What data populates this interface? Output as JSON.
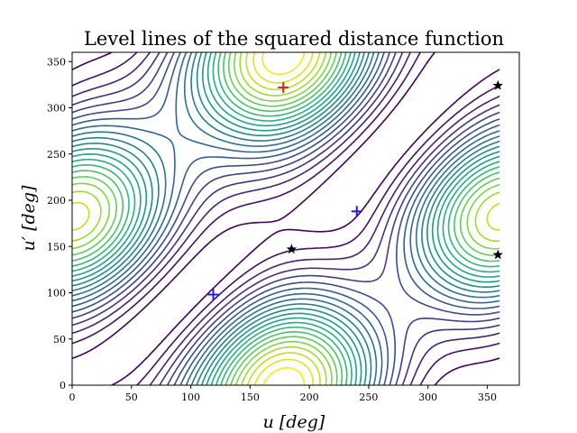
{
  "chart_data": {
    "type": "contour",
    "title": "Level lines of the squared distance function",
    "xlabel": "u [deg]",
    "ylabel": "u′ [deg]",
    "xlim": [
      0,
      377
    ],
    "ylim": [
      0,
      360
    ],
    "xticks": [
      0,
      50,
      100,
      150,
      200,
      250,
      300,
      350
    ],
    "yticks": [
      0,
      50,
      100,
      150,
      200,
      250,
      300,
      350
    ],
    "colormap": "viridis",
    "markers": [
      {
        "symbol": "plus",
        "color": "#d62728",
        "x": 178,
        "y": 322
      },
      {
        "symbol": "plus",
        "color": "#1f1fd8",
        "x": 119,
        "y": 98
      },
      {
        "symbol": "plus",
        "color": "#1f1fd8",
        "x": 240,
        "y": 188
      },
      {
        "symbol": "star",
        "color": "#000000",
        "x": 185,
        "y": 147
      },
      {
        "symbol": "star",
        "color": "#000000",
        "x": 359,
        "y": 324
      },
      {
        "symbol": "star",
        "color": "#000000",
        "x": 359,
        "y": 141
      }
    ],
    "grid": false
  }
}
